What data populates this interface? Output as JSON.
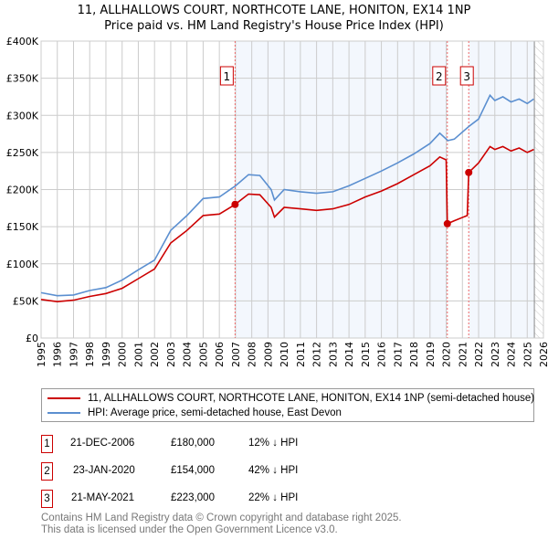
{
  "title": "11, ALLHALLOWS COURT, NORTHCOTE LANE, HONITON, EX14 1NP",
  "subtitle": "Price paid vs. HM Land Registry's House Price Index (HPI)",
  "legend": [
    {
      "label": "11, ALLHALLOWS COURT, NORTHCOTE LANE, HONITON, EX14 1NP (semi-detached house)",
      "color": "#cc0000"
    },
    {
      "label": "HPI: Average price, semi-detached house, East Devon",
      "color": "#5b8fd0"
    }
  ],
  "sales": [
    {
      "num": "1",
      "date": "21-DEC-2006",
      "price": "£180,000",
      "diff": "12% ↓ HPI",
      "x": 2006.97,
      "value": 180000
    },
    {
      "num": "2",
      "date": "23-JAN-2020",
      "price": "£154,000",
      "diff": "42% ↓ HPI",
      "x": 2020.07,
      "value": 154000
    },
    {
      "num": "3",
      "date": "21-MAY-2021",
      "price": "£223,000",
      "diff": "22% ↓ HPI",
      "x": 2021.39,
      "value": 223000
    }
  ],
  "footer": [
    "Contains HM Land Registry data © Crown copyright and database right 2025.",
    "This data is licensed under the Open Government Licence v3.0."
  ],
  "chart_data": {
    "type": "line",
    "xlim": [
      1995,
      2026
    ],
    "ylim": [
      0,
      400000
    ],
    "x_ticks": [
      "1995",
      "1996",
      "1997",
      "1998",
      "1999",
      "2000",
      "2001",
      "2002",
      "2003",
      "2004",
      "2005",
      "2006",
      "2007",
      "2008",
      "2009",
      "2010",
      "2011",
      "2012",
      "2013",
      "2014",
      "2015",
      "2016",
      "2017",
      "2018",
      "2019",
      "2020",
      "2021",
      "2022",
      "2023",
      "2024",
      "2025",
      "2026"
    ],
    "y_ticks": [
      "£0",
      "£50K",
      "£100K",
      "£150K",
      "£200K",
      "£250K",
      "£300K",
      "£350K",
      "£400K"
    ],
    "series": [
      {
        "name": "HPI",
        "x": [
          1995,
          1996,
          1997,
          1998,
          1999,
          2000,
          2001,
          2002,
          2003,
          2004,
          2005,
          2006,
          2007,
          2007.8,
          2008.5,
          2009.2,
          2009.4,
          2010,
          2011,
          2012,
          2013,
          2014,
          2015,
          2016,
          2017,
          2018,
          2019,
          2019.6,
          2020.1,
          2020.5,
          2021.4,
          2022,
          2022.7,
          2023,
          2023.5,
          2024,
          2024.5,
          2025,
          2025.4
        ],
        "values": [
          61000,
          57000,
          58000,
          64000,
          68000,
          78000,
          92000,
          105000,
          145000,
          165000,
          188000,
          190000,
          205000,
          220000,
          219000,
          200000,
          186000,
          200000,
          197000,
          195000,
          197000,
          205000,
          215000,
          225000,
          236000,
          248000,
          262000,
          276000,
          266000,
          268000,
          285000,
          295000,
          327000,
          320000,
          325000,
          318000,
          322000,
          316000,
          322000
        ]
      },
      {
        "name": "Price paid",
        "x": [
          1995,
          1996,
          1997,
          1998,
          1999,
          2000,
          2001,
          2002,
          2003,
          2004,
          2005,
          2006,
          2006.97,
          2007.8,
          2008.5,
          2009.2,
          2009.4,
          2010,
          2011,
          2012,
          2013,
          2014,
          2015,
          2016,
          2017,
          2018,
          2019,
          2019.6,
          2020.0,
          2020.07,
          2020.5,
          2021.3,
          2021.39,
          2022,
          2022.7,
          2023,
          2023.5,
          2024,
          2024.5,
          2025,
          2025.4
        ],
        "values": [
          52000,
          49000,
          51000,
          56000,
          60000,
          67000,
          80000,
          93000,
          128000,
          145000,
          165000,
          167000,
          180000,
          194000,
          193000,
          176000,
          163000,
          176000,
          174000,
          172000,
          174000,
          180000,
          190000,
          198000,
          208000,
          220000,
          232000,
          244000,
          240000,
          154000,
          158000,
          165000,
          223000,
          236000,
          258000,
          254000,
          258000,
          252000,
          256000,
          250000,
          254000
        ]
      }
    ]
  }
}
